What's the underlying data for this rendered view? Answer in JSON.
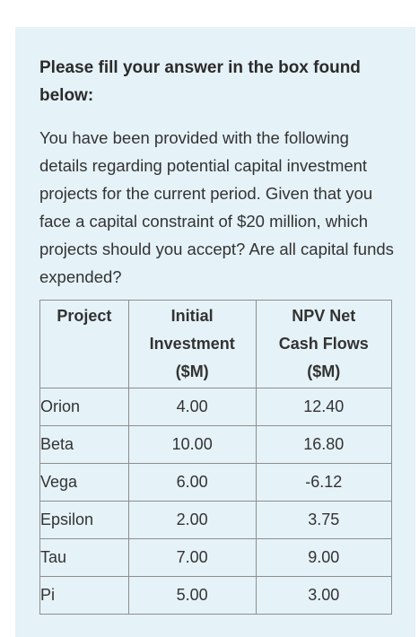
{
  "heading": "Please fill your answer in the box found below:",
  "question": "You have been provided with the following details regarding potential capital investment projects for the current period. Given that you face a capital constraint of $20 million, which projects should you accept? Are all capital funds expended?",
  "table": {
    "headers": {
      "project": "Project",
      "initial_line1": "Initial",
      "initial_line2": "Investment",
      "initial_line3": "($M)",
      "npv_line1": "NPV Net",
      "npv_line2": "Cash Flows",
      "npv_line3": "($M)"
    },
    "rows": [
      {
        "project": "Orion",
        "initial": "4.00",
        "npv": "12.40"
      },
      {
        "project": "Beta",
        "initial": "10.00",
        "npv": "16.80"
      },
      {
        "project": "Vega",
        "initial": "6.00",
        "npv": "-6.12"
      },
      {
        "project": "Epsilon",
        "initial": "2.00",
        "npv": "3.75"
      },
      {
        "project": "Tau",
        "initial": "7.00",
        "npv": "9.00"
      },
      {
        "project": "Pi",
        "initial": "5.00",
        "npv": "3.00"
      }
    ]
  },
  "colors": {
    "card_background": "#e5f2f8",
    "text": "#333333",
    "border": "#8e8e8e"
  }
}
